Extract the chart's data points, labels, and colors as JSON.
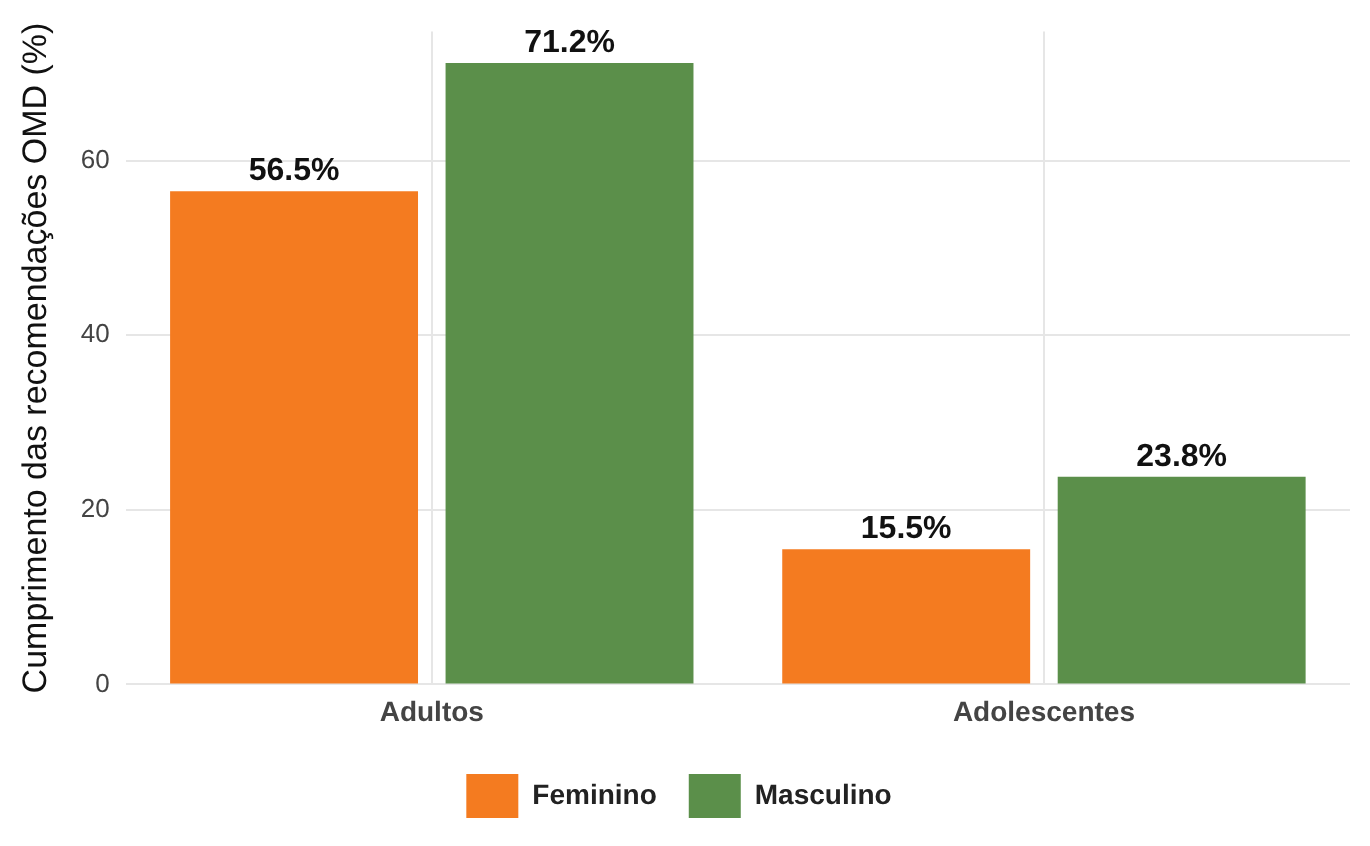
{
  "chart_data": {
    "type": "bar",
    "ylabel": "Cumprimento das recomendações OMD (%)",
    "categories": [
      "Adultos",
      "Adolescentes"
    ],
    "series": [
      {
        "name": "Feminino",
        "color": "#f47b20",
        "values": [
          56.5,
          15.5
        ],
        "value_labels": [
          "56.5%",
          "15.5%"
        ]
      },
      {
        "name": "Masculino",
        "color": "#5b8f4a",
        "values": [
          71.2,
          23.8
        ],
        "value_labels": [
          "71.2%",
          "23.8%"
        ]
      }
    ],
    "ylim": [
      0,
      74.8
    ],
    "yticks": [
      0,
      20,
      40,
      60
    ],
    "grid": true,
    "legend": "bottom"
  }
}
